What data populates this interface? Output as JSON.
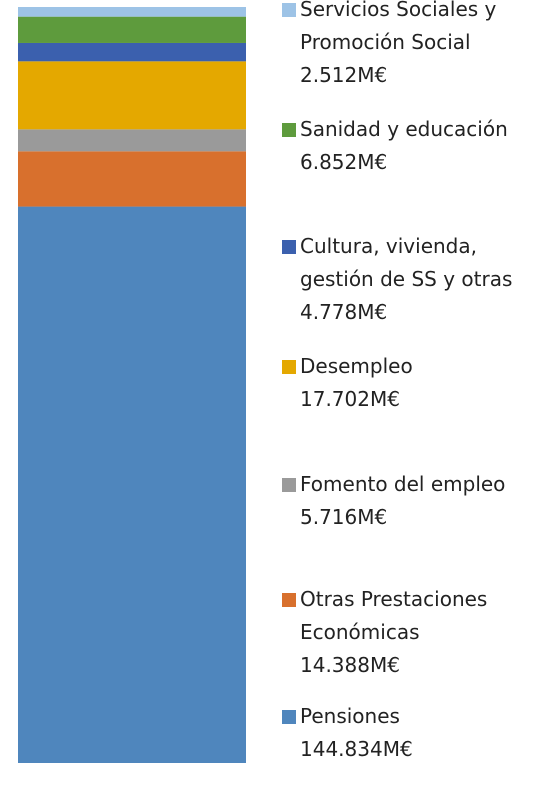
{
  "chart_data": {
    "type": "bar",
    "stacked": true,
    "series": [
      {
        "name": "Pensiones",
        "color": "#4f86bd",
        "values": [
          144834
        ],
        "value_labels": [
          "144.834M€"
        ]
      },
      {
        "name": "Otras Prestaciones Económicas",
        "color": "#d8702d",
        "values": [
          14388
        ],
        "value_labels": [
          "14.388M€"
        ]
      },
      {
        "name": "Fomento del empleo",
        "color": "#9a9a9a",
        "values": [
          5716
        ],
        "value_labels": [
          "5.716M€"
        ]
      },
      {
        "name": "Desempleo",
        "color": "#e4a800",
        "values": [
          17702
        ],
        "value_labels": [
          "17.702M€"
        ]
      },
      {
        "name": "Cultura, vivienda, gestión de SS y otras",
        "color": "#3b60ae",
        "values": [
          4778
        ],
        "value_labels": [
          "4.778M€"
        ]
      },
      {
        "name": "Sanidad y educación",
        "color": "#5e9b3d",
        "values": [
          6852
        ],
        "value_labels": [
          "6.852M€"
        ]
      },
      {
        "name": "Servicios Sociales y Promoción Social",
        "color": "#9dc3e6",
        "values": [
          2512
        ],
        "value_labels": [
          "2.512M€"
        ]
      }
    ]
  }
}
